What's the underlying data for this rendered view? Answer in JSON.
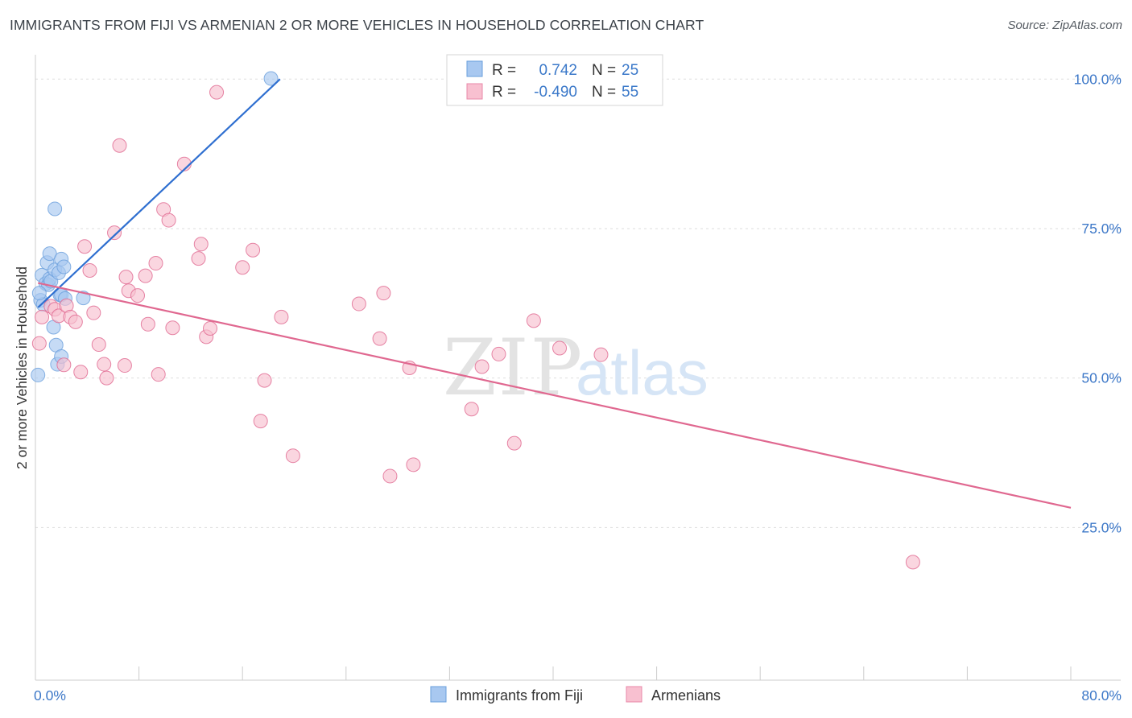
{
  "header": {
    "title": "IMMIGRANTS FROM FIJI VS ARMENIAN 2 OR MORE VEHICLES IN HOUSEHOLD CORRELATION CHART",
    "source": "Source: ZipAtlas.com"
  },
  "watermark": {
    "zip": "ZIP",
    "atlas": "atlas"
  },
  "legend": {
    "rows": [
      {
        "r_label": "R =",
        "r_value": "0.742",
        "n_label": "N =",
        "n_value": "25",
        "color": "#a8c8f0",
        "border": "#6a9fdc"
      },
      {
        "r_label": "R =",
        "r_value": "-0.490",
        "n_label": "N =",
        "n_value": "55",
        "color": "#f8c0d0",
        "border": "#e888a8"
      }
    ]
  },
  "bottom_legend": {
    "items": [
      {
        "label": "Immigrants from Fiji",
        "color": "#a8c8f0",
        "border": "#6a9fdc"
      },
      {
        "label": "Armenians",
        "color": "#f8c0d0",
        "border": "#e888a8"
      }
    ]
  },
  "chart_data": {
    "type": "scatter",
    "title": "IMMIGRANTS FROM FIJI VS ARMENIAN 2 OR MORE VEHICLES IN HOUSEHOLD CORRELATION CHART",
    "xlabel": "",
    "ylabel": "2 or more Vehicles in Household",
    "xlim": [
      0,
      80
    ],
    "ylim": [
      0,
      103
    ],
    "x_tick_labels": [
      "0.0%",
      "80.0%"
    ],
    "y_ticks": [
      25,
      50,
      75,
      100
    ],
    "y_tick_labels": [
      "25.0%",
      "50.0%",
      "75.0%",
      "100.0%"
    ],
    "grid": true,
    "series": [
      {
        "name": "Immigrants from Fiji",
        "color": "#6a9fdc",
        "fill": "#a8c8f0",
        "points": [
          [
            0.2,
            50.5
          ],
          [
            0.4,
            63.0
          ],
          [
            0.5,
            67.2
          ],
          [
            0.6,
            62.3
          ],
          [
            0.8,
            65.8
          ],
          [
            0.9,
            69.3
          ],
          [
            1.0,
            65.6
          ],
          [
            1.1,
            66.6
          ],
          [
            1.1,
            70.8
          ],
          [
            1.2,
            66.2
          ],
          [
            1.4,
            58.5
          ],
          [
            1.5,
            68.1
          ],
          [
            1.6,
            55.5
          ],
          [
            1.5,
            78.3
          ],
          [
            1.7,
            52.3
          ],
          [
            1.8,
            67.6
          ],
          [
            1.9,
            63.9
          ],
          [
            2.0,
            69.9
          ],
          [
            2.0,
            63.9
          ],
          [
            2.0,
            53.6
          ],
          [
            2.2,
            68.6
          ],
          [
            2.3,
            63.3
          ],
          [
            3.7,
            63.4
          ],
          [
            18.2,
            100.1
          ],
          [
            0.3,
            64.2
          ]
        ],
        "trend": [
          [
            0.2,
            61.8
          ],
          [
            18.9,
            100.0
          ]
        ]
      },
      {
        "name": "Armenians",
        "color": "#e06890",
        "fill": "#f8c0d0",
        "points": [
          [
            0.3,
            55.8
          ],
          [
            0.5,
            60.2
          ],
          [
            1.2,
            62.0
          ],
          [
            1.5,
            61.5
          ],
          [
            1.8,
            60.4
          ],
          [
            2.2,
            52.2
          ],
          [
            2.4,
            62.1
          ],
          [
            2.7,
            60.2
          ],
          [
            3.1,
            59.4
          ],
          [
            3.5,
            51.0
          ],
          [
            3.8,
            72.0
          ],
          [
            4.2,
            68.0
          ],
          [
            4.5,
            60.9
          ],
          [
            4.9,
            55.6
          ],
          [
            5.3,
            52.3
          ],
          [
            5.5,
            50.0
          ],
          [
            6.1,
            74.3
          ],
          [
            6.5,
            88.9
          ],
          [
            6.9,
            52.1
          ],
          [
            7.0,
            66.9
          ],
          [
            7.2,
            64.6
          ],
          [
            7.9,
            63.8
          ],
          [
            8.5,
            67.1
          ],
          [
            8.7,
            59.0
          ],
          [
            9.3,
            69.2
          ],
          [
            9.5,
            50.6
          ],
          [
            9.9,
            78.2
          ],
          [
            10.3,
            76.4
          ],
          [
            10.6,
            58.4
          ],
          [
            11.5,
            85.8
          ],
          [
            12.6,
            70.0
          ],
          [
            12.8,
            72.4
          ],
          [
            13.2,
            56.9
          ],
          [
            13.5,
            58.3
          ],
          [
            14.0,
            97.8
          ],
          [
            16.0,
            68.5
          ],
          [
            16.8,
            71.4
          ],
          [
            17.4,
            42.8
          ],
          [
            17.7,
            49.6
          ],
          [
            19.0,
            60.2
          ],
          [
            19.9,
            37.0
          ],
          [
            25.0,
            62.4
          ],
          [
            26.6,
            56.6
          ],
          [
            26.9,
            64.2
          ],
          [
            27.4,
            33.6
          ],
          [
            28.9,
            51.7
          ],
          [
            29.2,
            35.5
          ],
          [
            33.7,
            44.8
          ],
          [
            34.5,
            51.9
          ],
          [
            35.8,
            54.0
          ],
          [
            37.0,
            39.1
          ],
          [
            38.5,
            59.6
          ],
          [
            40.5,
            55.0
          ],
          [
            43.7,
            53.9
          ],
          [
            67.8,
            19.2
          ]
        ],
        "trend": [
          [
            0.2,
            65.9
          ],
          [
            80.0,
            28.3
          ]
        ]
      }
    ]
  }
}
